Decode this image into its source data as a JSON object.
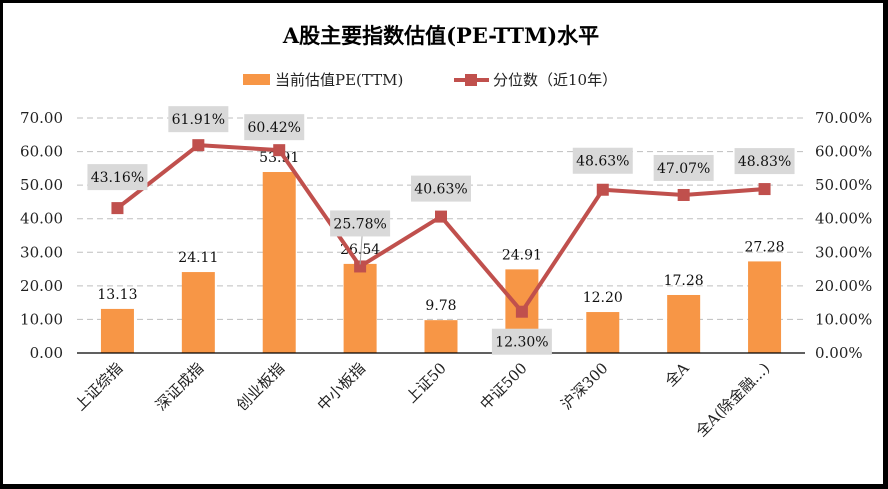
{
  "chart_data": {
    "type": "bar+line",
    "title": "A股主要指数估值(PE-TTM)水平",
    "legend": {
      "position": "top",
      "entries": [
        "当前估值PE(TTM)",
        "分位数（近10年）"
      ]
    },
    "categories": [
      "上证综指",
      "深证成指",
      "创业板指",
      "中小板指",
      "上证50",
      "中证500",
      "沪深300",
      "全A",
      "全A(除金融...)"
    ],
    "series": [
      {
        "name": "当前估值PE(TTM)",
        "type": "bar",
        "axis": "left",
        "color": "#F79646",
        "values": [
          13.13,
          24.11,
          53.91,
          26.54,
          9.78,
          24.91,
          12.2,
          17.28,
          27.28
        ],
        "labels": [
          "13.13",
          "24.11",
          "53.91",
          "26.54",
          "9.78",
          "24.91",
          "12.20",
          "17.28",
          "27.28"
        ]
      },
      {
        "name": "分位数（近10年）",
        "type": "line",
        "axis": "right",
        "color": "#C0504D",
        "values": [
          43.16,
          61.91,
          60.42,
          25.78,
          40.63,
          12.3,
          48.63,
          47.07,
          48.83
        ],
        "labels": [
          "43.16%",
          "61.91%",
          "60.42%",
          "25.78%",
          "40.63%",
          "12.30%",
          "48.63%",
          "47.07%",
          "48.83%"
        ]
      }
    ],
    "y_left": {
      "range": [
        0,
        70
      ],
      "ticks": [
        "0.00",
        "10.00",
        "20.00",
        "30.00",
        "40.00",
        "50.00",
        "60.00",
        "70.00"
      ]
    },
    "y_right": {
      "range": [
        0,
        70
      ],
      "ticks": [
        "0.00%",
        "10.00%",
        "20.00%",
        "30.00%",
        "40.00%",
        "50.00%",
        "60.00%",
        "70.00%"
      ]
    },
    "grid": true,
    "xlabel": "",
    "ylabel": ""
  }
}
